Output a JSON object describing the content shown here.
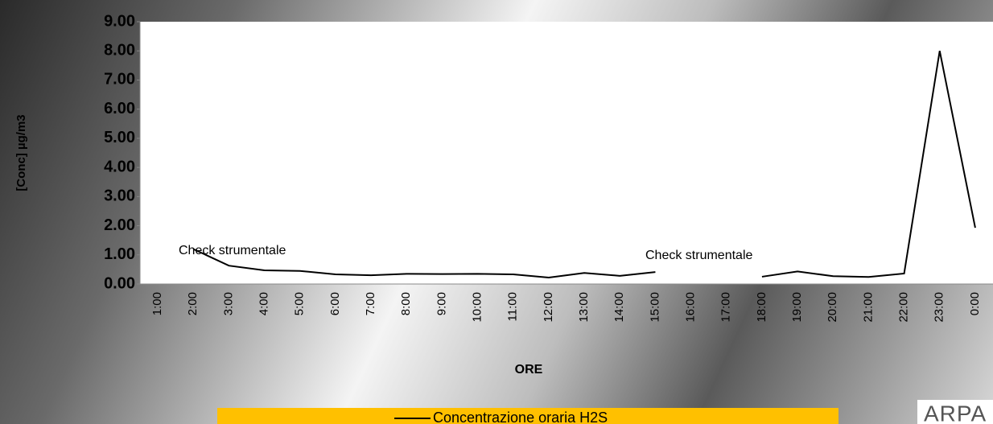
{
  "chart_data": {
    "type": "line",
    "y_label": "[Conc] µg/m3",
    "x_label": "ORE",
    "categories": [
      "1:00",
      "2:00",
      "3:00",
      "4:00",
      "5:00",
      "6:00",
      "7:00",
      "8:00",
      "9:00",
      "10:00",
      "11:00",
      "12:00",
      "13:00",
      "14:00",
      "15:00",
      "16:00",
      "17:00",
      "18:00",
      "19:00",
      "20:00",
      "21:00",
      "22:00",
      "23:00",
      "0:00"
    ],
    "series": [
      {
        "name": "Concentrazione oraria H2S",
        "color": "#000000",
        "values": [
          null,
          1.2,
          0.63,
          0.47,
          0.45,
          0.33,
          0.3,
          0.35,
          0.34,
          0.35,
          0.33,
          0.22,
          0.38,
          0.28,
          0.41,
          null,
          null,
          0.25,
          0.43,
          0.27,
          0.24,
          0.36,
          8.0,
          1.93
        ]
      }
    ],
    "ylim": [
      0,
      9
    ],
    "yticks": [
      {
        "value": 0,
        "label": "0.00"
      },
      {
        "value": 1,
        "label": "1.00"
      },
      {
        "value": 2,
        "label": "2.00"
      },
      {
        "value": 3,
        "label": "3.00"
      },
      {
        "value": 4,
        "label": "4.00"
      },
      {
        "value": 5,
        "label": "5.00"
      },
      {
        "value": 6,
        "label": "6.00"
      },
      {
        "value": 7,
        "label": "7.00"
      },
      {
        "value": 8,
        "label": "8.00"
      },
      {
        "value": 9,
        "label": "9.00"
      }
    ],
    "annotations": [
      "Check strumentale",
      "Check strumentale"
    ]
  },
  "logo": "ARPA"
}
